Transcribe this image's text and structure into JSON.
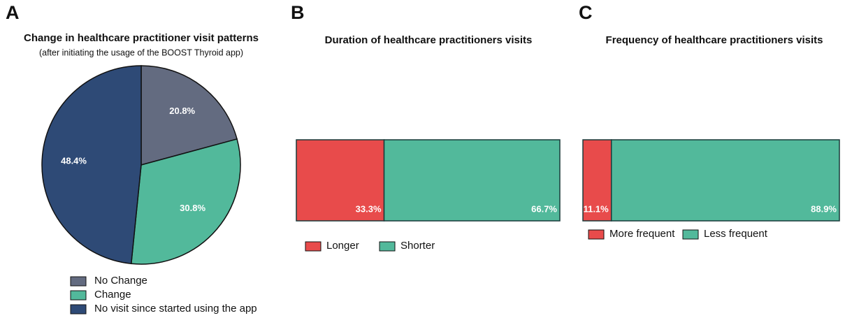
{
  "chart_data": [
    {
      "type": "pie",
      "panel": "A",
      "title": "Change in healthcare practitioner visit patterns",
      "subtitle": "(after initiating the usage of the BOOST Thyroid app)",
      "categories": [
        "No Change",
        "Change",
        "No visit since started using the app"
      ],
      "values": [
        20.8,
        30.8,
        48.4
      ],
      "value_labels": [
        "20.8%",
        "30.8%",
        "48.4%"
      ],
      "colors": [
        "#636b80",
        "#52b99b",
        "#2e4a76"
      ]
    },
    {
      "type": "bar",
      "panel": "B",
      "title": "Duration of healthcare practitioners visits",
      "stacked": true,
      "orientation": "horizontal",
      "categories": [
        null
      ],
      "series": [
        {
          "name": "Longer",
          "color": "#e84b4b",
          "values": [
            33.3
          ],
          "value_labels": [
            "33.3%"
          ]
        },
        {
          "name": "Shorter",
          "color": "#52b99b",
          "values": [
            66.7
          ],
          "value_labels": [
            "66.7%"
          ]
        }
      ]
    },
    {
      "type": "bar",
      "panel": "C",
      "title": "Frequency of healthcare practitioners visits",
      "stacked": true,
      "orientation": "horizontal",
      "categories": [
        null
      ],
      "series": [
        {
          "name": "More frequent",
          "color": "#e84b4b",
          "values": [
            11.1
          ],
          "value_labels": [
            "11.1%"
          ]
        },
        {
          "name": "Less frequent",
          "color": "#52b99b",
          "values": [
            88.9
          ],
          "value_labels": [
            "88.9%"
          ]
        }
      ]
    }
  ]
}
